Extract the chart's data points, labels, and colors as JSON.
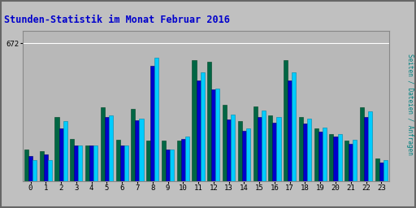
{
  "title": "Stunden-Statistik im Monat Februar 2016",
  "title_color": "#0000cc",
  "background_color": "#c0c0c0",
  "plot_bg_color": "#b8b8b8",
  "ylabel_right": "Seiten / Dateien / Anfragen",
  "ylabel_right_color": "#008080",
  "ytick_label": "672",
  "hours": [
    0,
    1,
    2,
    3,
    4,
    5,
    6,
    7,
    8,
    9,
    10,
    11,
    12,
    13,
    14,
    15,
    16,
    17,
    18,
    19,
    20,
    21,
    22,
    23
  ],
  "green": [
    155,
    145,
    310,
    205,
    175,
    360,
    200,
    350,
    195,
    195,
    195,
    590,
    580,
    370,
    290,
    365,
    320,
    590,
    310,
    255,
    230,
    195,
    360,
    110
  ],
  "blue": [
    120,
    130,
    255,
    175,
    175,
    310,
    175,
    295,
    560,
    155,
    205,
    490,
    445,
    300,
    245,
    310,
    285,
    490,
    280,
    240,
    215,
    180,
    310,
    90
  ],
  "cyan": [
    100,
    100,
    290,
    175,
    175,
    320,
    175,
    305,
    600,
    155,
    215,
    530,
    450,
    325,
    255,
    345,
    310,
    530,
    305,
    260,
    230,
    200,
    340,
    100
  ],
  "color_green": "#006644",
  "color_blue": "#0000cc",
  "color_cyan": "#00ccff",
  "bar_width": 0.27,
  "ylim": [
    0,
    730
  ],
  "ytick_val": 672,
  "grid_color": "#ffffff",
  "border_color": "#888888"
}
